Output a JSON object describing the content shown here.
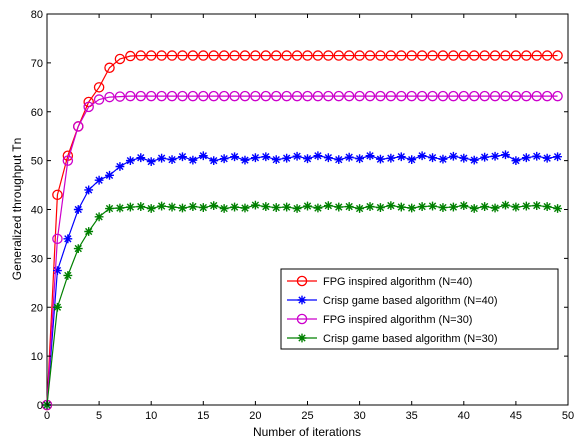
{
  "chart_data": {
    "type": "line",
    "title": "",
    "xlabel": "Number of iterations",
    "ylabel": "Generalized throughput Tn",
    "xlim": [
      0,
      50
    ],
    "ylim": [
      0,
      80
    ],
    "xticks": [
      0,
      5,
      10,
      15,
      20,
      25,
      30,
      35,
      40,
      45,
      50
    ],
    "yticks": [
      0,
      10,
      20,
      30,
      40,
      50,
      60,
      70,
      80
    ],
    "grid": false,
    "legend_position": "lower-right",
    "x": [
      0,
      1,
      2,
      3,
      4,
      5,
      6,
      7,
      8,
      9,
      10,
      11,
      12,
      13,
      14,
      15,
      16,
      17,
      18,
      19,
      20,
      21,
      22,
      23,
      24,
      25,
      26,
      27,
      28,
      29,
      30,
      31,
      32,
      33,
      34,
      35,
      36,
      37,
      38,
      39,
      40,
      41,
      42,
      43,
      44,
      45,
      46,
      47,
      48,
      49
    ],
    "series": [
      {
        "name": "FPG inspired algorithm (N=40)",
        "color": "#ff0000",
        "marker": "circle",
        "values": [
          0,
          43,
          51,
          57,
          62,
          65,
          69,
          70.8,
          71.4,
          71.5,
          71.5,
          71.5,
          71.5,
          71.5,
          71.5,
          71.5,
          71.5,
          71.5,
          71.5,
          71.5,
          71.5,
          71.5,
          71.5,
          71.5,
          71.5,
          71.5,
          71.5,
          71.5,
          71.5,
          71.5,
          71.5,
          71.5,
          71.5,
          71.5,
          71.5,
          71.5,
          71.5,
          71.5,
          71.5,
          71.5,
          71.5,
          71.5,
          71.5,
          71.5,
          71.5,
          71.5,
          71.5,
          71.5,
          71.5,
          71.5
        ]
      },
      {
        "name": "Crisp game based algorithm (N=40)",
        "color": "#0000ff",
        "marker": "star",
        "values": [
          0,
          27.5,
          34,
          40,
          44,
          46,
          47,
          48.8,
          50,
          50.6,
          49.8,
          50.5,
          50.2,
          50.8,
          50.1,
          51,
          50,
          50.4,
          50.8,
          50.1,
          50.6,
          50.8,
          50.2,
          50.5,
          50.9,
          50.4,
          51,
          50.6,
          50.2,
          50.7,
          50.4,
          51,
          50.3,
          50.5,
          50.8,
          50.2,
          51,
          50.6,
          50.3,
          50.9,
          50.5,
          50.1,
          50.7,
          50.9,
          51.2,
          50,
          50.6,
          50.9,
          50.5,
          50.8
        ]
      },
      {
        "name": "FPG inspired algorithm (N=30)",
        "color": "#cc00cc",
        "marker": "circle",
        "values": [
          0,
          34,
          50,
          57,
          61,
          62.5,
          63,
          63.1,
          63.2,
          63.2,
          63.2,
          63.2,
          63.2,
          63.2,
          63.2,
          63.2,
          63.2,
          63.2,
          63.2,
          63.2,
          63.2,
          63.2,
          63.2,
          63.2,
          63.2,
          63.2,
          63.2,
          63.2,
          63.2,
          63.2,
          63.2,
          63.2,
          63.2,
          63.2,
          63.2,
          63.2,
          63.2,
          63.2,
          63.2,
          63.2,
          63.2,
          63.2,
          63.2,
          63.2,
          63.2,
          63.2,
          63.2,
          63.2,
          63.2,
          63.2
        ]
      },
      {
        "name": "Crisp game based algorithm (N=30)",
        "color": "#008000",
        "marker": "star",
        "values": [
          0,
          20,
          26.5,
          32,
          35.5,
          38.5,
          40.2,
          40.3,
          40.5,
          40.6,
          40.2,
          40.7,
          40.5,
          40.3,
          40.6,
          40.4,
          40.8,
          40.2,
          40.5,
          40.3,
          40.9,
          40.6,
          40.4,
          40.5,
          40.2,
          40.7,
          40.3,
          40.8,
          40.5,
          40.6,
          40.2,
          40.6,
          40.4,
          40.8,
          40.5,
          40.3,
          40.6,
          40.7,
          40.4,
          40.5,
          40.8,
          40.2,
          40.6,
          40.3,
          40.9,
          40.5,
          40.7,
          40.8,
          40.6,
          40.2
        ]
      }
    ]
  }
}
